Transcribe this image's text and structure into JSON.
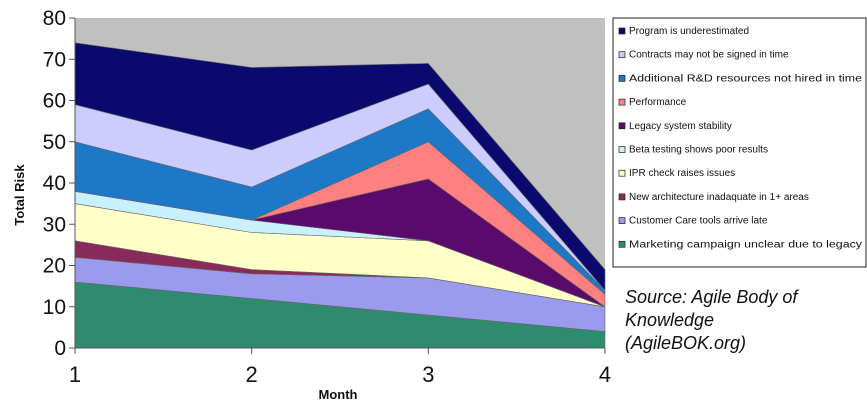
{
  "chart_data": {
    "type": "area",
    "stacked": true,
    "title": "",
    "xlabel": "Month",
    "ylabel": "Total Risk",
    "x": [
      1,
      2,
      3,
      4
    ],
    "ylim": [
      0,
      80
    ],
    "yticks": [
      0,
      10,
      20,
      30,
      40,
      50,
      60,
      70,
      80
    ],
    "grid": false,
    "plot_background": "#c0c0c0",
    "legend_position": "right",
    "series": [
      {
        "name": "Marketing campaign unclear due to legacy",
        "color": "#2e8b6e",
        "values": [
          16,
          12,
          8,
          4
        ]
      },
      {
        "name": "Customer Care tools arrive late",
        "color": "#9a9aee",
        "values": [
          6,
          6,
          9,
          6
        ]
      },
      {
        "name": "New architecture inadaquate in 1+ areas",
        "color": "#8a2a5a",
        "values": [
          4,
          1,
          0,
          0
        ]
      },
      {
        "name": "IPR check raises issues",
        "color": "#ffffc8",
        "values": [
          9,
          9,
          9,
          0
        ]
      },
      {
        "name": "Beta testing shows poor results",
        "color": "#c8f0ff",
        "values": [
          3,
          3,
          0,
          0
        ]
      },
      {
        "name": "Legacy system stability",
        "color": "#5a0a6a",
        "values": [
          0,
          0,
          15,
          0
        ]
      },
      {
        "name": "Performance",
        "color": "#ff8080",
        "values": [
          0,
          0,
          9,
          3
        ]
      },
      {
        "name": "Additional R&D resources not hired in time",
        "color": "#1e78c8",
        "values": [
          12,
          8,
          8,
          1
        ]
      },
      {
        "name": "Contracts may not be signed in time",
        "color": "#ccccff",
        "values": [
          9,
          9,
          6,
          0
        ]
      },
      {
        "name": "Program is underestimated",
        "color": "#0a0a6e",
        "values": [
          15,
          20,
          5,
          5
        ]
      }
    ],
    "legend_order": [
      9,
      8,
      7,
      6,
      5,
      4,
      3,
      2,
      1,
      0
    ]
  },
  "source_note": "Source: Agile Body of\nKnowledge\n(AgileBOK.org)"
}
